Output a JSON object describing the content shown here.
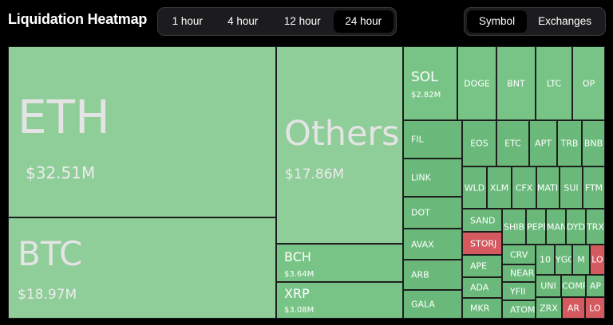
{
  "title": "Liquidation Heatmap",
  "time_tabs": [
    {
      "label": "1 hour",
      "active": false
    },
    {
      "label": "4 hour",
      "active": false
    },
    {
      "label": "12 hour",
      "active": false
    },
    {
      "label": "24 hour",
      "active": true
    }
  ],
  "view_tabs": [
    {
      "label": "Symbol",
      "active": true
    },
    {
      "label": "Exchanges",
      "active": false
    }
  ],
  "colors": {
    "green_light": "#8fcd99",
    "green_mid": "#78c486",
    "green_dark": "#6ab97a",
    "red": "#d45a5f"
  },
  "tiles": {
    "eth": {
      "symbol": "ETH",
      "value": "$32.51M"
    },
    "btc": {
      "symbol": "BTC",
      "value": "$18.97M"
    },
    "others": {
      "symbol": "Others",
      "value": "$17.86M"
    },
    "bch": {
      "symbol": "BCH",
      "value": "$3.64M"
    },
    "xrp": {
      "symbol": "XRP",
      "value": "$3.08M"
    },
    "sol": {
      "symbol": "SOL",
      "value": "$2.82M"
    },
    "doge": {
      "symbol": "DOGE"
    },
    "bnt": {
      "symbol": "BNT"
    },
    "ltc": {
      "symbol": "LTC"
    },
    "op": {
      "symbol": "OP"
    },
    "fil": {
      "symbol": "FIL"
    },
    "link": {
      "symbol": "LINK"
    },
    "dot": {
      "symbol": "DOT"
    },
    "avax": {
      "symbol": "AVAX"
    },
    "arb": {
      "symbol": "ARB"
    },
    "gala": {
      "symbol": "GALA"
    },
    "eos": {
      "symbol": "EOS"
    },
    "etc": {
      "symbol": "ETC"
    },
    "apt": {
      "symbol": "APT"
    },
    "trb": {
      "symbol": "TRB"
    },
    "bnb": {
      "symbol": "BNB"
    },
    "wld": {
      "symbol": "WLD"
    },
    "xlm": {
      "symbol": "XLM"
    },
    "cfx": {
      "symbol": "CFX"
    },
    "mat": {
      "symbol": "MATIC"
    },
    "sui": {
      "symbol": "SUI"
    },
    "ftm": {
      "symbol": "FTM"
    },
    "sand": {
      "symbol": "SAND"
    },
    "shi": {
      "symbol": "SHIB"
    },
    "pe": {
      "symbol": "PEPE"
    },
    "ma": {
      "symbol": "MANA"
    },
    "dy": {
      "symbol": "DYDX"
    },
    "tr": {
      "symbol": "TRX"
    },
    "storj": {
      "symbol": "STORJ"
    },
    "ape": {
      "symbol": "APE"
    },
    "crv": {
      "symbol": "CRV"
    },
    "near": {
      "symbol": "NEAR"
    },
    "ada": {
      "symbol": "ADA"
    },
    "yfii": {
      "symbol": "YFII"
    },
    "mkr": {
      "symbol": "MKR"
    },
    "atom": {
      "symbol": "ATOM"
    },
    "t10": {
      "symbol": "10"
    },
    "yc": {
      "symbol": "YGG"
    },
    "m2": {
      "symbol": "M"
    },
    "lo1": {
      "symbol": "LO"
    },
    "uni": {
      "symbol": "UNI"
    },
    "co": {
      "symbol": "COMP"
    },
    "ap2": {
      "symbol": "AP"
    },
    "zrx": {
      "symbol": "ZRX"
    },
    "ar": {
      "symbol": "AR"
    },
    "lo2": {
      "symbol": "LO"
    }
  }
}
